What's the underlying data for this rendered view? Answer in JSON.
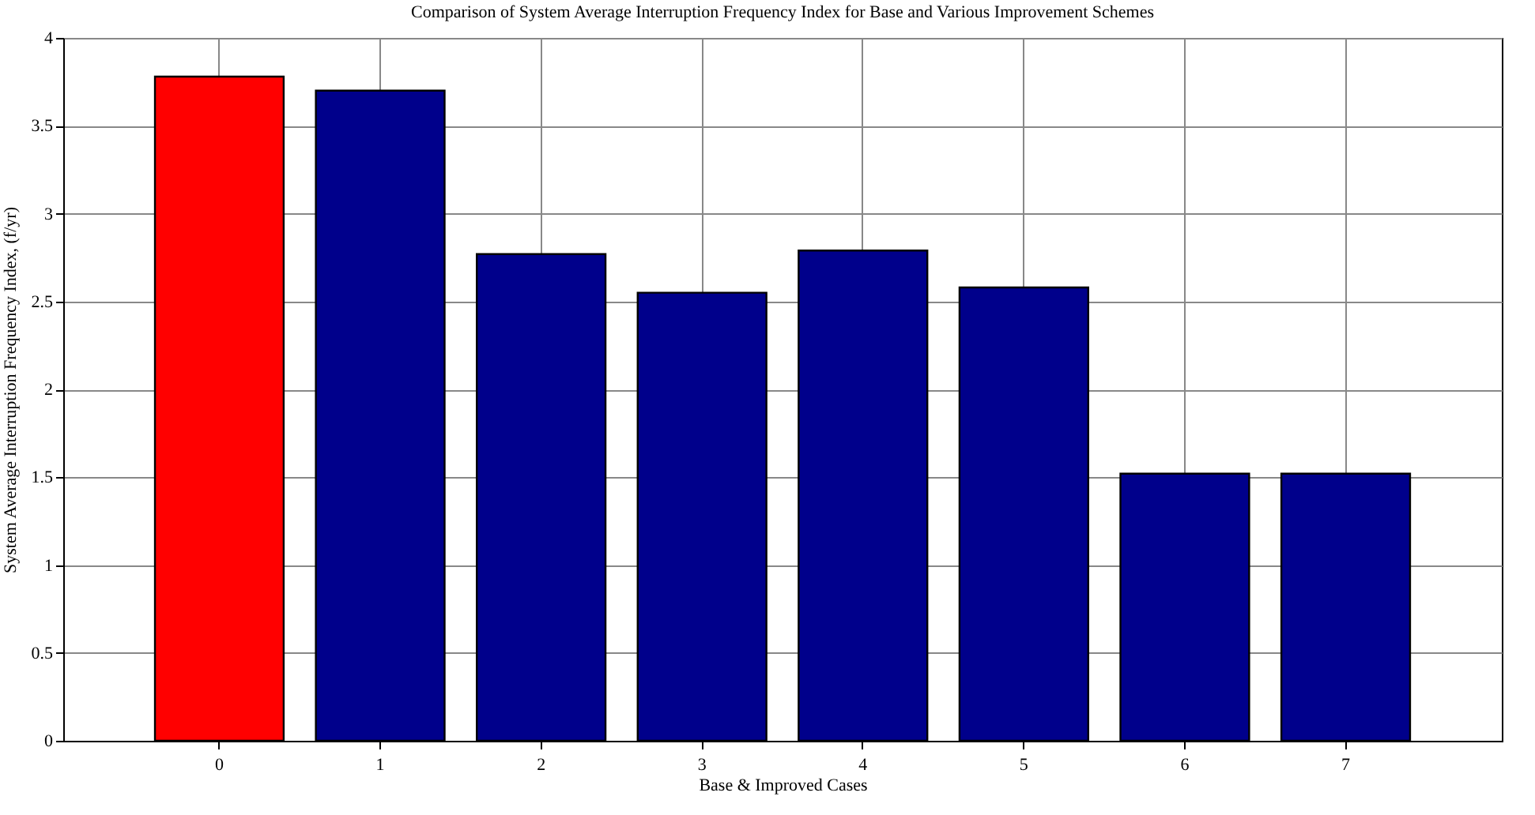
{
  "chart_data": {
    "type": "bar",
    "title": "Comparison of System Average Interruption Frequency Index for Base and Various Improvement Schemes",
    "xlabel": "Base & Improved Cases",
    "ylabel": "System Average Interruption Frequency Index, (f/yr)",
    "categories": [
      "0",
      "1",
      "2",
      "3",
      "4",
      "5",
      "6",
      "7"
    ],
    "values": [
      3.78,
      3.7,
      2.77,
      2.55,
      2.79,
      2.58,
      1.52,
      1.52
    ],
    "colors": [
      "#ff0000",
      "#00008b",
      "#00008b",
      "#00008b",
      "#00008b",
      "#00008b",
      "#00008b",
      "#00008b"
    ],
    "ylim": [
      0,
      4
    ],
    "yticks": [
      0,
      0.5,
      1,
      1.5,
      2,
      2.5,
      3,
      3.5,
      4
    ],
    "grid": true
  }
}
